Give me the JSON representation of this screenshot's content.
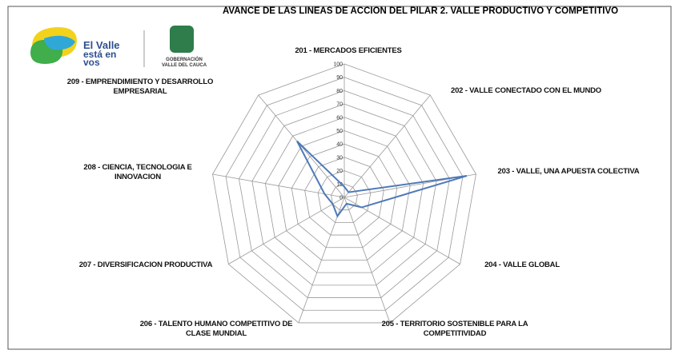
{
  "logo": {
    "line1": "El Valle",
    "line2": "está en",
    "line3": "vos",
    "gov1": "GOBERNACIÓN",
    "gov2": "VALLE DEL CAUCA"
  },
  "chart_data": {
    "type": "radar",
    "title": "AVANCE DE LAS LINEAS DE ACCION DEL PILAR 2. VALLE PRODUCTIVO Y COMPETITIVO",
    "categories": [
      "201 - MERCADOS EFICIENTES",
      "202 - VALLE CONECTADO CON EL MUNDO",
      "203 - VALLE, UNA APUESTA COLECTIVA",
      "204 - VALLE GLOBAL",
      "205 - TERRITORIO SOSTENIBLE PARA LA COMPETITIVIDAD",
      "206 - TALENTO HUMANO COMPETITIVO DE CLASE MUNDIAL",
      "207 - DIVERSIFICACION PRODUCTIVA",
      "208 - CIENCIA, TECNOLOGIA E INNOVACION",
      "209 - EMPRENDIMIENTO Y DESARROLLO EMPRESARIAL"
    ],
    "values": [
      8,
      5,
      93,
      15,
      5,
      15,
      10,
      15,
      55
    ],
    "color": "#4f79b8",
    "ylim": [
      0,
      100
    ],
    "yticks": [
      0,
      10,
      20,
      30,
      40,
      50,
      60,
      70,
      80,
      90,
      100
    ],
    "grid": true
  }
}
